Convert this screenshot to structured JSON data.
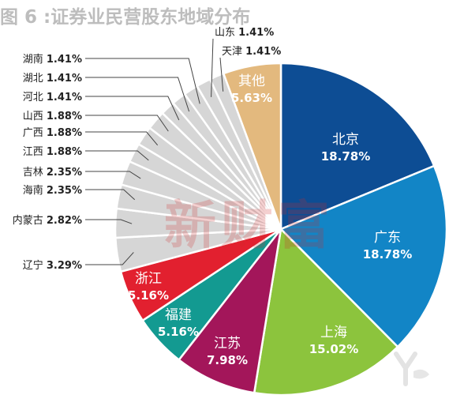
{
  "figure": {
    "title": "图 6 :证券业民营股东地域分布"
  },
  "watermark": {
    "text": "新财富"
  },
  "chart_data": {
    "type": "pie",
    "title": "图 6 :证券业民营股东地域分布",
    "unit": "%",
    "slices": [
      {
        "label": "北京",
        "value": 18.78,
        "value_text": "18.78%",
        "color": "#0d4d94",
        "label_style": "inside"
      },
      {
        "label": "广东",
        "value": 18.78,
        "value_text": "18.78%",
        "color": "#1285c6",
        "label_style": "inside"
      },
      {
        "label": "上海",
        "value": 15.02,
        "value_text": "15.02%",
        "color": "#8cc43d",
        "label_style": "inside"
      },
      {
        "label": "江苏",
        "value": 7.98,
        "value_text": "7.98%",
        "color": "#a3165a",
        "label_style": "inside"
      },
      {
        "label": "福建",
        "value": 5.16,
        "value_text": "5.16%",
        "color": "#139a91",
        "label_style": "inside"
      },
      {
        "label": "浙江",
        "value": 5.16,
        "value_text": "5.16%",
        "color": "#e2202f",
        "label_style": "inside"
      },
      {
        "label": "辽宁",
        "value": 3.29,
        "value_text": "3.29%",
        "color": "#d6d6d6",
        "label_style": "outside"
      },
      {
        "label": "内蒙古",
        "value": 2.82,
        "value_text": "2.82%",
        "color": "#d6d6d6",
        "label_style": "outside"
      },
      {
        "label": "海南",
        "value": 2.35,
        "value_text": "2.35%",
        "color": "#d6d6d6",
        "label_style": "outside"
      },
      {
        "label": "吉林",
        "value": 2.35,
        "value_text": "2.35%",
        "color": "#d6d6d6",
        "label_style": "outside"
      },
      {
        "label": "江西",
        "value": 1.88,
        "value_text": "1.88%",
        "color": "#d6d6d6",
        "label_style": "outside"
      },
      {
        "label": "广西",
        "value": 1.88,
        "value_text": "1.88%",
        "color": "#d6d6d6",
        "label_style": "outside"
      },
      {
        "label": "山西",
        "value": 1.88,
        "value_text": "1.88%",
        "color": "#d6d6d6",
        "label_style": "outside"
      },
      {
        "label": "河北",
        "value": 1.41,
        "value_text": "1.41%",
        "color": "#d6d6d6",
        "label_style": "outside"
      },
      {
        "label": "湖北",
        "value": 1.41,
        "value_text": "1.41%",
        "color": "#d6d6d6",
        "label_style": "outside"
      },
      {
        "label": "湖南",
        "value": 1.41,
        "value_text": "1.41%",
        "color": "#d6d6d6",
        "label_style": "outside"
      },
      {
        "label": "山东",
        "value": 1.41,
        "value_text": "1.41%",
        "color": "#d6d6d6",
        "label_style": "outside"
      },
      {
        "label": "天津",
        "value": 1.41,
        "value_text": "1.41%",
        "color": "#d6d6d6",
        "label_style": "outside"
      },
      {
        "label": "其他",
        "value": 5.63,
        "value_text": "5.63%",
        "color": "#e3b97e",
        "label_style": "inside"
      }
    ],
    "start": "12 o'clock",
    "direction": "clockwise",
    "legend": "none"
  }
}
